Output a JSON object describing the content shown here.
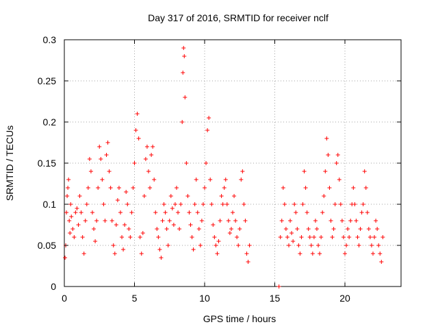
{
  "chart_data": {
    "type": "scatter",
    "title": "Day 317 of 2016, SRMTID for receiver nclf",
    "xlabel": "GPS time / hours",
    "ylabel": "SRMTID / TECUs",
    "xlim": [
      0,
      24
    ],
    "ylim": [
      0,
      0.3
    ],
    "x_ticks": [
      0,
      5,
      10,
      15,
      20
    ],
    "y_ticks": [
      0,
      0.05,
      0.1,
      0.15,
      0.2,
      0.25,
      0.3
    ],
    "x_tick_labels": [
      "0",
      "5",
      "10",
      "15",
      "20"
    ],
    "y_tick_labels": [
      "0",
      "0.05",
      "0.1",
      "0.15",
      "0.2",
      "0.25",
      "0.3"
    ],
    "grid": true,
    "marker": "+",
    "series": [
      {
        "name": "SRMTID",
        "color": "#ff0000",
        "points": [
          [
            0.05,
            0.035
          ],
          [
            0.1,
            0.05
          ],
          [
            0.15,
            0.09
          ],
          [
            0.2,
            0.11
          ],
          [
            0.25,
            0.12
          ],
          [
            0.3,
            0.13
          ],
          [
            0.35,
            0.08
          ],
          [
            0.4,
            0.065
          ],
          [
            0.45,
            0.1
          ],
          [
            0.5,
            0.085
          ],
          [
            0.6,
            0.07
          ],
          [
            0.7,
            0.06
          ],
          [
            0.8,
            0.09
          ],
          [
            0.9,
            0.095
          ],
          [
            1.0,
            0.075
          ],
          [
            1.1,
            0.11
          ],
          [
            1.2,
            0.09
          ],
          [
            1.3,
            0.06
          ],
          [
            1.4,
            0.04
          ],
          [
            1.5,
            0.08
          ],
          [
            1.6,
            0.1
          ],
          [
            1.7,
            0.12
          ],
          [
            1.8,
            0.155
          ],
          [
            1.9,
            0.14
          ],
          [
            2.0,
            0.09
          ],
          [
            2.1,
            0.07
          ],
          [
            2.2,
            0.055
          ],
          [
            2.3,
            0.08
          ],
          [
            2.4,
            0.12
          ],
          [
            2.5,
            0.17
          ],
          [
            2.6,
            0.155
          ],
          [
            2.7,
            0.13
          ],
          [
            2.8,
            0.1
          ],
          [
            2.9,
            0.08
          ],
          [
            3.0,
            0.16
          ],
          [
            3.1,
            0.175
          ],
          [
            3.2,
            0.14
          ],
          [
            3.3,
            0.12
          ],
          [
            3.4,
            0.08
          ],
          [
            3.5,
            0.05
          ],
          [
            3.6,
            0.04
          ],
          [
            3.7,
            0.075
          ],
          [
            3.8,
            0.105
          ],
          [
            3.9,
            0.12
          ],
          [
            4.0,
            0.09
          ],
          [
            4.1,
            0.06
          ],
          [
            4.2,
            0.045
          ],
          [
            4.3,
            0.075
          ],
          [
            4.4,
            0.115
          ],
          [
            4.5,
            0.1
          ],
          [
            4.6,
            0.07
          ],
          [
            4.7,
            0.06
          ],
          [
            4.8,
            0.09
          ],
          [
            4.9,
            0.12
          ],
          [
            5.0,
            0.15
          ],
          [
            5.1,
            0.19
          ],
          [
            5.2,
            0.21
          ],
          [
            5.3,
            0.18
          ],
          [
            5.4,
            0.06
          ],
          [
            5.5,
            0.04
          ],
          [
            5.6,
            0.065
          ],
          [
            5.7,
            0.11
          ],
          [
            5.8,
            0.155
          ],
          [
            5.9,
            0.17
          ],
          [
            6.0,
            0.14
          ],
          [
            6.1,
            0.12
          ],
          [
            6.2,
            0.16
          ],
          [
            6.3,
            0.17
          ],
          [
            6.4,
            0.13
          ],
          [
            6.5,
            0.09
          ],
          [
            6.6,
            0.07
          ],
          [
            6.7,
            0.06
          ],
          [
            6.8,
            0.045
          ],
          [
            6.9,
            0.035
          ],
          [
            7.0,
            0.08
          ],
          [
            7.1,
            0.1
          ],
          [
            7.2,
            0.09
          ],
          [
            7.3,
            0.07
          ],
          [
            7.4,
            0.05
          ],
          [
            7.5,
            0.08
          ],
          [
            7.6,
            0.11
          ],
          [
            7.7,
            0.095
          ],
          [
            7.8,
            0.075
          ],
          [
            7.9,
            0.1
          ],
          [
            8.0,
            0.12
          ],
          [
            8.1,
            0.09
          ],
          [
            8.2,
            0.07
          ],
          [
            8.3,
            0.1
          ],
          [
            8.4,
            0.2
          ],
          [
            8.45,
            0.26
          ],
          [
            8.5,
            0.29
          ],
          [
            8.55,
            0.28
          ],
          [
            8.6,
            0.23
          ],
          [
            8.7,
            0.15
          ],
          [
            8.8,
            0.11
          ],
          [
            8.9,
            0.09
          ],
          [
            9.0,
            0.075
          ],
          [
            9.1,
            0.06
          ],
          [
            9.2,
            0.045
          ],
          [
            9.3,
            0.1
          ],
          [
            9.4,
            0.13
          ],
          [
            9.5,
            0.09
          ],
          [
            9.6,
            0.07
          ],
          [
            9.7,
            0.05
          ],
          [
            9.8,
            0.08
          ],
          [
            9.9,
            0.1
          ],
          [
            10.0,
            0.12
          ],
          [
            10.1,
            0.15
          ],
          [
            10.2,
            0.19
          ],
          [
            10.3,
            0.205
          ],
          [
            10.4,
            0.13
          ],
          [
            10.5,
            0.1
          ],
          [
            10.6,
            0.075
          ],
          [
            10.7,
            0.06
          ],
          [
            10.8,
            0.05
          ],
          [
            10.9,
            0.04
          ],
          [
            11.0,
            0.055
          ],
          [
            11.1,
            0.08
          ],
          [
            11.2,
            0.11
          ],
          [
            11.3,
            0.1
          ],
          [
            11.4,
            0.12
          ],
          [
            11.5,
            0.13
          ],
          [
            11.6,
            0.1
          ],
          [
            11.7,
            0.08
          ],
          [
            11.8,
            0.065
          ],
          [
            11.9,
            0.07
          ],
          [
            12.0,
            0.09
          ],
          [
            12.1,
            0.11
          ],
          [
            12.2,
            0.08
          ],
          [
            12.3,
            0.06
          ],
          [
            12.4,
            0.05
          ],
          [
            12.5,
            0.07
          ],
          [
            12.6,
            0.13
          ],
          [
            12.7,
            0.14
          ],
          [
            12.8,
            0.1
          ],
          [
            12.9,
            0.08
          ],
          [
            13.0,
            0.04
          ],
          [
            13.1,
            0.03
          ],
          [
            13.2,
            0.05
          ],
          [
            15.3,
            0.0
          ],
          [
            15.4,
            0.06
          ],
          [
            15.5,
            0.08
          ],
          [
            15.6,
            0.12
          ],
          [
            15.7,
            0.1
          ],
          [
            15.8,
            0.07
          ],
          [
            15.9,
            0.06
          ],
          [
            16.0,
            0.05
          ],
          [
            16.1,
            0.08
          ],
          [
            16.2,
            0.065
          ],
          [
            16.3,
            0.055
          ],
          [
            16.4,
            0.1
          ],
          [
            16.5,
            0.09
          ],
          [
            16.6,
            0.07
          ],
          [
            16.7,
            0.05
          ],
          [
            16.8,
            0.04
          ],
          [
            16.9,
            0.06
          ],
          [
            17.0,
            0.1
          ],
          [
            17.1,
            0.14
          ],
          [
            17.2,
            0.12
          ],
          [
            17.3,
            0.09
          ],
          [
            17.4,
            0.07
          ],
          [
            17.5,
            0.06
          ],
          [
            17.6,
            0.05
          ],
          [
            17.7,
            0.04
          ],
          [
            17.8,
            0.06
          ],
          [
            17.9,
            0.08
          ],
          [
            18.0,
            0.07
          ],
          [
            18.1,
            0.05
          ],
          [
            18.2,
            0.04
          ],
          [
            18.3,
            0.06
          ],
          [
            18.4,
            0.09
          ],
          [
            18.5,
            0.11
          ],
          [
            18.6,
            0.14
          ],
          [
            18.7,
            0.18
          ],
          [
            18.8,
            0.16
          ],
          [
            18.9,
            0.12
          ],
          [
            19.0,
            0.08
          ],
          [
            19.1,
            0.06
          ],
          [
            19.2,
            0.07
          ],
          [
            19.3,
            0.1
          ],
          [
            19.4,
            0.15
          ],
          [
            19.5,
            0.16
          ],
          [
            19.6,
            0.13
          ],
          [
            19.7,
            0.1
          ],
          [
            19.8,
            0.08
          ],
          [
            19.9,
            0.06
          ],
          [
            20.0,
            0.04
          ],
          [
            20.1,
            0.05
          ],
          [
            20.2,
            0.07
          ],
          [
            20.3,
            0.06
          ],
          [
            20.4,
            0.08
          ],
          [
            20.5,
            0.1
          ],
          [
            20.6,
            0.12
          ],
          [
            20.7,
            0.1
          ],
          [
            20.8,
            0.08
          ],
          [
            20.9,
            0.06
          ],
          [
            21.0,
            0.05
          ],
          [
            21.1,
            0.07
          ],
          [
            21.2,
            0.09
          ],
          [
            21.3,
            0.1
          ],
          [
            21.4,
            0.14
          ],
          [
            21.5,
            0.12
          ],
          [
            21.6,
            0.09
          ],
          [
            21.7,
            0.07
          ],
          [
            21.8,
            0.06
          ],
          [
            21.9,
            0.05
          ],
          [
            22.0,
            0.04
          ],
          [
            22.1,
            0.06
          ],
          [
            22.2,
            0.08
          ],
          [
            22.3,
            0.07
          ],
          [
            22.4,
            0.05
          ],
          [
            22.5,
            0.04
          ],
          [
            22.6,
            0.03
          ],
          [
            22.7,
            0.06
          ]
        ]
      }
    ]
  }
}
